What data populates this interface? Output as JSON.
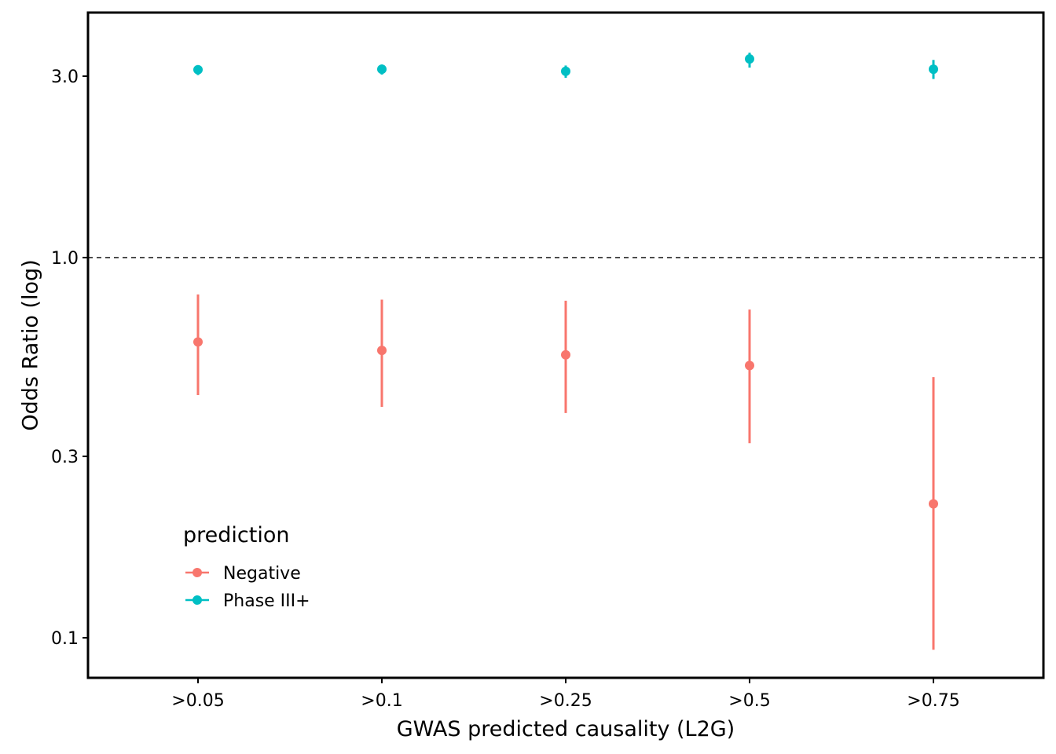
{
  "chart_data": {
    "type": "scatter",
    "subtype": "point-range",
    "title": "",
    "xlabel": "GWAS predicted causality (L2G)",
    "ylabel": "Odds Ratio (log)",
    "y_scale": "log",
    "ylim": [
      0.085,
      4.1
    ],
    "y_ticks": [
      0.1,
      0.3,
      1.0,
      3.0
    ],
    "y_tick_labels": [
      "0.1",
      "0.3",
      "1.0",
      "3.0"
    ],
    "reference_line": {
      "y": 1.0,
      "style": "dashed"
    },
    "categories": [
      ">0.05",
      ">0.1",
      ">0.25",
      ">0.5",
      ">0.75"
    ],
    "legend": {
      "title": "prediction",
      "position": "bottom-left"
    },
    "series": [
      {
        "name": "Negative",
        "color": "#F8766D",
        "values": [
          0.6,
          0.57,
          0.555,
          0.52,
          0.225
        ],
        "lower": [
          0.435,
          0.405,
          0.39,
          0.325,
          0.093
        ],
        "upper": [
          0.8,
          0.775,
          0.77,
          0.73,
          0.485
        ]
      },
      {
        "name": "Phase III+",
        "color": "#00BFC4",
        "values": [
          3.12,
          3.13,
          3.09,
          3.33,
          3.13
        ],
        "lower": [
          3.02,
          3.03,
          2.97,
          3.16,
          2.95
        ],
        "upper": [
          3.2,
          3.22,
          3.2,
          3.46,
          3.31
        ]
      }
    ]
  }
}
